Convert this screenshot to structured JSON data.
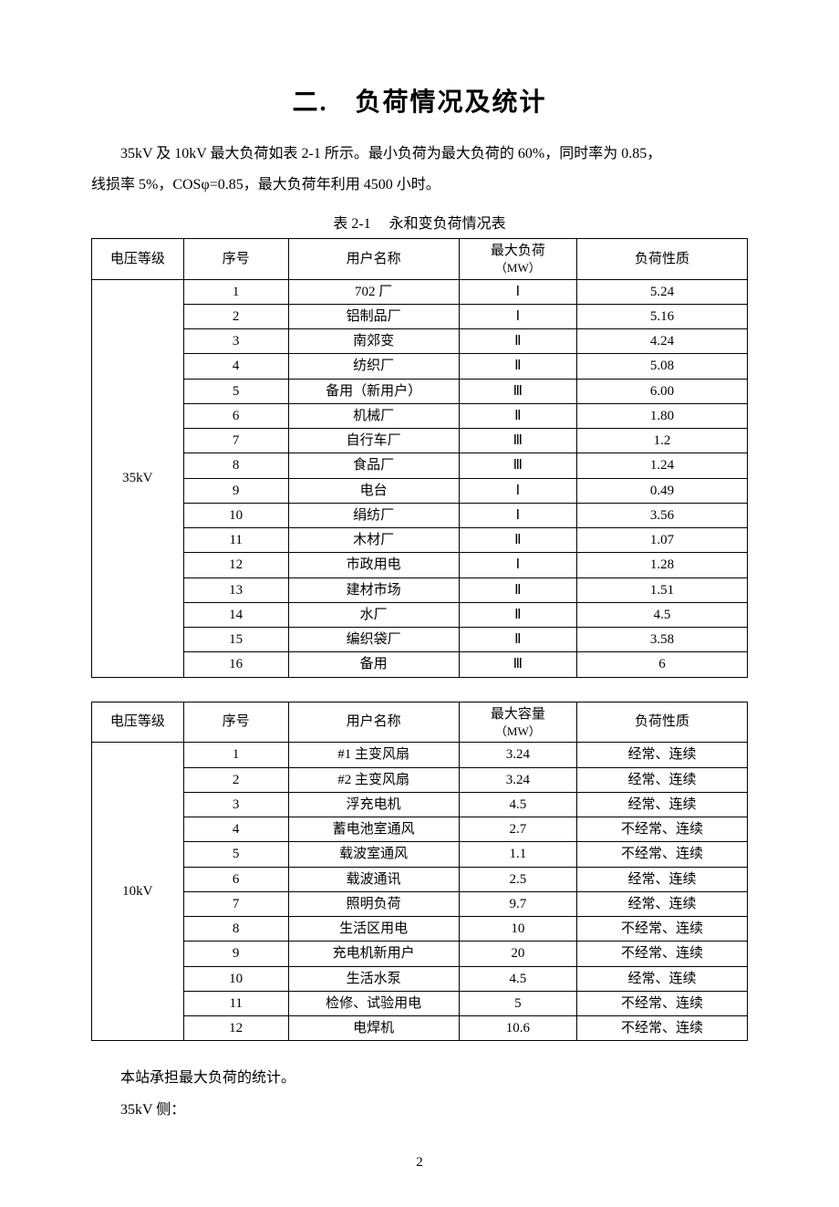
{
  "title": "二.　负荷情况及统计",
  "intro_p1": "35kV 及 10kV 最大负荷如表 2-1 所示。最小负荷为最大负荷的 60%，同时率为 0.85，",
  "intro_p2": "线损率 5%，COSφ=0.85，最大负荷年利用 4500 小时。",
  "table_caption": "表 2-1　 永和变负荷情况表",
  "headers1": {
    "c1": "电压等级",
    "c2": "序号",
    "c3": "用户名称",
    "c4_line1": "最大负荷",
    "c4_line2": "（MW）",
    "c5": "负荷性质"
  },
  "voltage1": "35kV",
  "rows1": [
    {
      "seq": "1",
      "user": "702 厂",
      "max": "Ⅰ",
      "prop": "5.24"
    },
    {
      "seq": "2",
      "user": "铝制品厂",
      "max": "Ⅰ",
      "prop": "5.16"
    },
    {
      "seq": "3",
      "user": "南郊变",
      "max": "Ⅱ",
      "prop": "4.24"
    },
    {
      "seq": "4",
      "user": "纺织厂",
      "max": "Ⅱ",
      "prop": "5.08"
    },
    {
      "seq": "5",
      "user": "备用（新用户）",
      "max": "Ⅲ",
      "prop": "6.00"
    },
    {
      "seq": "6",
      "user": "机械厂",
      "max": "Ⅱ",
      "prop": "1.80"
    },
    {
      "seq": "7",
      "user": "自行车厂",
      "max": "Ⅲ",
      "prop": "1.2"
    },
    {
      "seq": "8",
      "user": "食品厂",
      "max": "Ⅲ",
      "prop": "1.24"
    },
    {
      "seq": "9",
      "user": "电台",
      "max": "Ⅰ",
      "prop": "0.49"
    },
    {
      "seq": "10",
      "user": "绢纺厂",
      "max": "Ⅰ",
      "prop": "3.56"
    },
    {
      "seq": "11",
      "user": "木材厂",
      "max": "Ⅱ",
      "prop": "1.07"
    },
    {
      "seq": "12",
      "user": "市政用电",
      "max": "Ⅰ",
      "prop": "1.28"
    },
    {
      "seq": "13",
      "user": "建材市场",
      "max": "Ⅱ",
      "prop": "1.51"
    },
    {
      "seq": "14",
      "user": "水厂",
      "max": "Ⅱ",
      "prop": "4.5"
    },
    {
      "seq": "15",
      "user": "编织袋厂",
      "max": "Ⅱ",
      "prop": "3.58"
    },
    {
      "seq": "16",
      "user": "备用",
      "max": "Ⅲ",
      "prop": "6"
    }
  ],
  "headers2": {
    "c1": "电压等级",
    "c2": "序号",
    "c3": "用户名称",
    "c4_line1": "最大容量",
    "c4_line2": "（MW）",
    "c5": "负荷性质"
  },
  "voltage2": "10kV",
  "rows2": [
    {
      "seq": "1",
      "user": "#1 主变风扇",
      "max": "3.24",
      "prop": "经常、连续"
    },
    {
      "seq": "2",
      "user": "#2 主变风扇",
      "max": "3.24",
      "prop": "经常、连续"
    },
    {
      "seq": "3",
      "user": "浮充电机",
      "max": "4.5",
      "prop": "经常、连续"
    },
    {
      "seq": "4",
      "user": "蓄电池室通风",
      "max": "2.7",
      "prop": "不经常、连续"
    },
    {
      "seq": "5",
      "user": "载波室通风",
      "max": "1.1",
      "prop": "不经常、连续"
    },
    {
      "seq": "6",
      "user": "载波通讯",
      "max": "2.5",
      "prop": "经常、连续"
    },
    {
      "seq": "7",
      "user": "照明负荷",
      "max": "9.7",
      "prop": "经常、连续"
    },
    {
      "seq": "8",
      "user": "生活区用电",
      "max": "10",
      "prop": "不经常、连续"
    },
    {
      "seq": "9",
      "user": "充电机新用户",
      "max": "20",
      "prop": "不经常、连续"
    },
    {
      "seq": "10",
      "user": "生活水泵",
      "max": "4.5",
      "prop": "经常、连续"
    },
    {
      "seq": "11",
      "user": "检修、试验用电",
      "max": "5",
      "prop": "不经常、连续"
    },
    {
      "seq": "12",
      "user": "电焊机",
      "max": "10.6",
      "prop": "不经常、连续"
    }
  ],
  "footer_p1": "本站承担最大负荷的统计。",
  "footer_p2": "35kV 侧：",
  "page_number": "2",
  "style": {
    "bg": "#ffffff",
    "text_color": "#000000",
    "border_color": "#000000",
    "title_fontsize": 28,
    "body_fontsize": 16,
    "cell_fontsize": 15
  }
}
